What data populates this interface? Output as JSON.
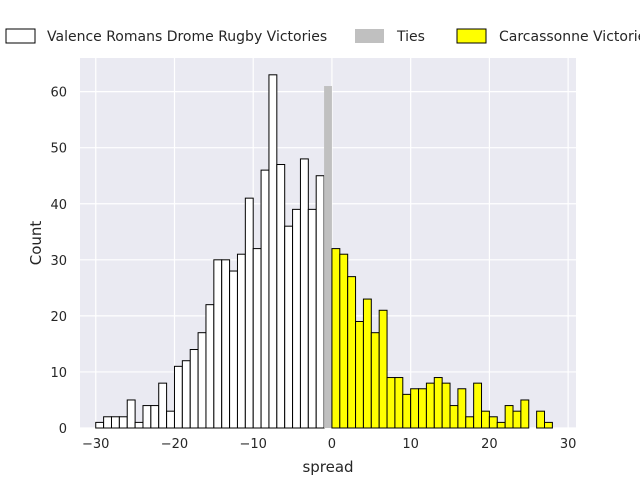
{
  "chart_data": {
    "type": "bar",
    "xlabel": "spread",
    "ylabel": "Count",
    "xlim": [
      -32,
      31
    ],
    "ylim": [
      0,
      66
    ],
    "xticks": [
      -30,
      -20,
      -10,
      0,
      10,
      20,
      30
    ],
    "yticks": [
      0,
      10,
      20,
      30,
      40,
      50,
      60
    ],
    "grid": true,
    "legend_position": "top",
    "bin_width": 1,
    "colors": {
      "valence": "#ffffff",
      "ties": "#c0c0c0",
      "carcassonne": "#ffff00",
      "edge": "#000000",
      "plot_bg": "#eaeaf2"
    },
    "series": [
      {
        "name": "Valence Romans Drome Rugby Victories",
        "x": [
          -29,
          -28,
          -27,
          -26,
          -25,
          -24,
          -23,
          -22,
          -21,
          -20,
          -19,
          -18,
          -17,
          -16,
          -15,
          -14,
          -13,
          -12,
          -11,
          -10,
          -9,
          -8,
          -7,
          -6,
          -5,
          -4,
          -3,
          -2,
          -1
        ],
        "values": [
          1,
          2,
          2,
          2,
          5,
          1,
          4,
          4,
          8,
          3,
          11,
          12,
          14,
          17,
          22,
          30,
          30,
          28,
          31,
          41,
          32,
          46,
          63,
          47,
          36,
          39,
          48,
          39,
          45
        ]
      },
      {
        "name": "Ties",
        "x": [
          0
        ],
        "values": [
          61
        ]
      },
      {
        "name": "Carcassonne Victories",
        "x": [
          1,
          2,
          3,
          4,
          5,
          6,
          7,
          8,
          9,
          10,
          11,
          12,
          13,
          14,
          15,
          16,
          17,
          18,
          19,
          20,
          21,
          22,
          23,
          24,
          25,
          26,
          27,
          28
        ],
        "values": [
          32,
          31,
          27,
          19,
          23,
          17,
          21,
          9,
          9,
          6,
          7,
          7,
          8,
          9,
          8,
          4,
          7,
          2,
          8,
          3,
          2,
          1,
          4,
          3,
          5,
          0,
          3,
          1
        ]
      }
    ]
  }
}
